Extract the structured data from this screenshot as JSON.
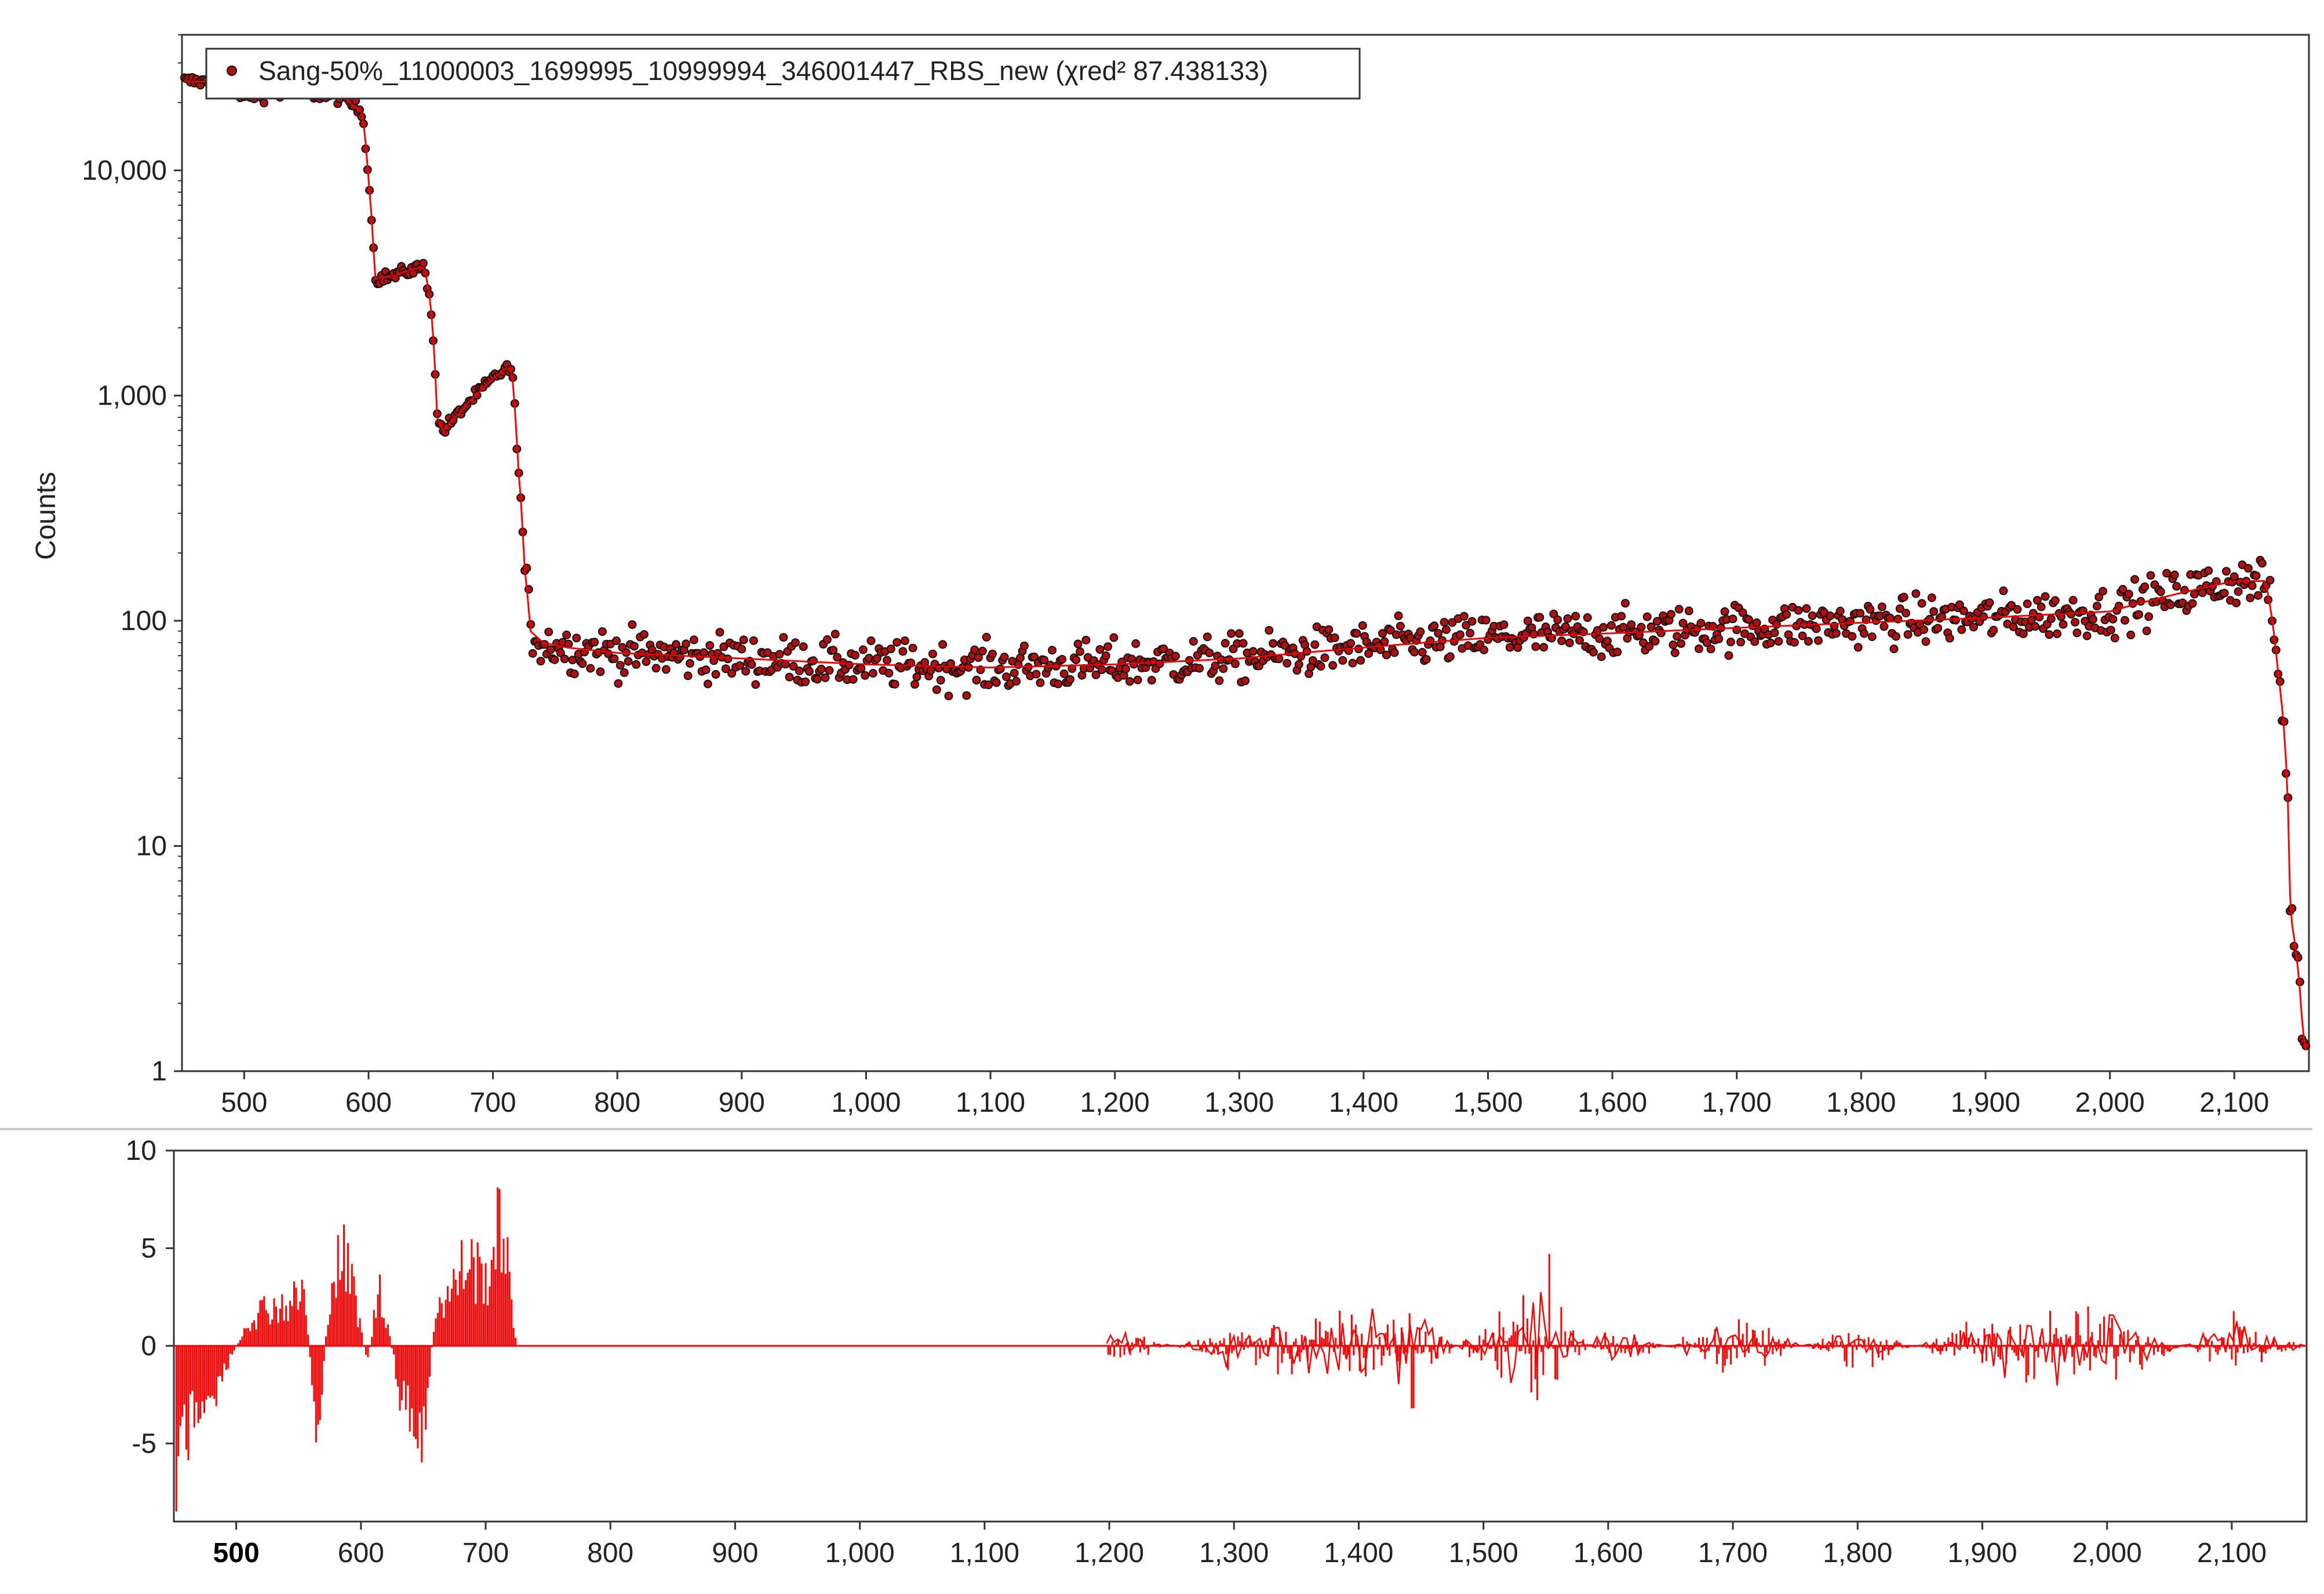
{
  "chart_data": [
    {
      "type": "scatter",
      "name": "spectrum-panel",
      "ylabel": "Counts",
      "xlabel": "",
      "yscale": "log",
      "xlim": [
        450,
        2160
      ],
      "ylim": [
        1,
        40000
      ],
      "grid": false,
      "legend_position": "top-left",
      "legend_label": "Sang-50%_11000003_1699995_10999994_346001447_RBS_new  (χred²  87.438133)",
      "x_ticks": [
        500,
        600,
        700,
        800,
        900,
        1000,
        1100,
        1200,
        1300,
        1400,
        1500,
        1600,
        1700,
        1800,
        1900,
        2000,
        2100
      ],
      "x_tick_labels": [
        "500",
        "600",
        "700",
        "800",
        "900",
        "1,000",
        "1,100",
        "1,200",
        "1,300",
        "1,400",
        "1,500",
        "1,600",
        "1,700",
        "1,800",
        "1,900",
        "2,000",
        "2,100"
      ],
      "y_ticks": [
        1,
        10,
        100,
        1000,
        10000
      ],
      "y_tick_labels": [
        "1",
        "10",
        "100",
        "1,000",
        "10,000"
      ],
      "series": [
        {
          "name": "Sang-50%_11000003_1699995_10999994_346001447_RBS_new",
          "style": "markers",
          "marker_color": "#b01010",
          "marker_edge": "#111111",
          "x": [
            450,
            480,
            500,
            550,
            580,
            595,
            600,
            605,
            620,
            640,
            645,
            650,
            655,
            660,
            670,
            690,
            710,
            715,
            720,
            725,
            730,
            740,
            760,
            800,
            900,
            1000,
            1100,
            1200,
            1300,
            1400,
            1500,
            1600,
            1700,
            1800,
            1900,
            2000,
            2050,
            2100,
            2125,
            2135,
            2145,
            2155,
            2160
          ],
          "y": [
            25000,
            24500,
            21500,
            22000,
            21000,
            18000,
            9000,
            3300,
            3400,
            3700,
            3700,
            2500,
            800,
            700,
            800,
            1050,
            1320,
            1300,
            500,
            180,
            90,
            80,
            76,
            72,
            68,
            64,
            62,
            64,
            68,
            76,
            84,
            88,
            93,
            98,
            103,
            110,
            130,
            150,
            150,
            60,
            5,
            1.5,
            1
          ]
        },
        {
          "name": "fit",
          "style": "line",
          "color": "#ff0000",
          "x": [
            450,
            480,
            500,
            550,
            580,
            595,
            600,
            605,
            620,
            640,
            645,
            650,
            655,
            660,
            670,
            690,
            710,
            715,
            720,
            725,
            730,
            740,
            760,
            800,
            900,
            1000,
            1100,
            1200,
            1300,
            1400,
            1500,
            1600,
            1700,
            1800,
            1900,
            2000,
            2050,
            2100,
            2125,
            2135,
            2145,
            2155,
            2160
          ],
          "y": [
            25000,
            24500,
            21500,
            22000,
            21000,
            18000,
            9000,
            3300,
            3400,
            3700,
            3700,
            2500,
            800,
            700,
            800,
            1050,
            1320,
            1300,
            500,
            180,
            90,
            80,
            76,
            72,
            68,
            64,
            62,
            64,
            68,
            76,
            84,
            88,
            93,
            98,
            103,
            110,
            130,
            150,
            150,
            60,
            5,
            1.5,
            1
          ]
        }
      ]
    },
    {
      "type": "line",
      "name": "residual-panel",
      "xlabel": "",
      "ylabel": "",
      "xlim": [
        450,
        2160
      ],
      "ylim": [
        -9,
        10
      ],
      "grid": false,
      "x_ticks": [
        500,
        600,
        700,
        800,
        900,
        1000,
        1100,
        1200,
        1300,
        1400,
        1500,
        1600,
        1700,
        1800,
        1900,
        2000,
        2100
      ],
      "x_tick_labels": [
        "500",
        "600",
        "700",
        "800",
        "900",
        "1,000",
        "1,100",
        "1,200",
        "1,300",
        "1,400",
        "1,500",
        "1,600",
        "1,700",
        "1,800",
        "1,900",
        "2,000",
        "2,100"
      ],
      "x_tick_bold_index": 0,
      "y_ticks": [
        -5,
        0,
        5,
        10
      ],
      "y_tick_labels": [
        "-5",
        "0",
        "5",
        "10"
      ],
      "series": [
        {
          "name": "residuals",
          "color": "#ff0000",
          "style": "filled-spikes",
          "x": [
            452,
            460,
            475,
            490,
            510,
            525,
            540,
            555,
            565,
            575,
            585,
            595,
            605,
            615,
            630,
            648,
            660,
            672,
            685,
            700,
            715,
            722,
            730,
            800,
            900,
            1000,
            1100,
            1195,
            1200,
            1300,
            1443,
            1500,
            1553,
            1600,
            1700,
            1800,
            1900,
            2000,
            2100,
            2160
          ],
          "y": [
            -8.5,
            -7,
            -5,
            -2,
            2,
            3,
            3,
            4,
            -7.2,
            4.5,
            6.8,
            4,
            -1.5,
            5,
            -3,
            -8.8,
            3,
            4,
            6.5,
            5,
            10,
            1,
            0,
            0,
            0,
            0,
            0,
            0,
            2,
            -2,
            -3.2,
            2,
            4.7,
            -2,
            2.5,
            -2,
            2.5,
            3,
            -2,
            0
          ]
        }
      ]
    }
  ]
}
